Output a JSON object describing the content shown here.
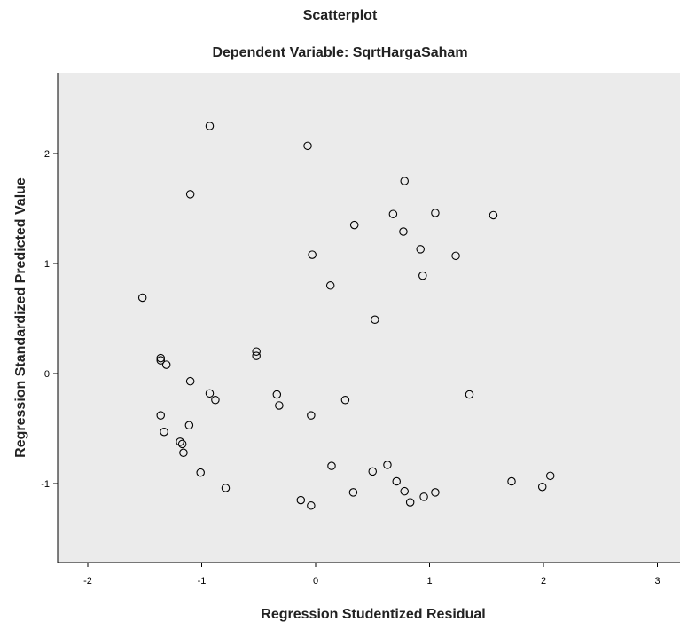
{
  "chart_data": {
    "type": "scatter",
    "title": "Scatterplot",
    "subtitle": "Dependent Variable: SqrtHargaSaham",
    "xlabel": "Regression Studentized Residual",
    "ylabel": "Regression Standardized Predicted Value",
    "xlim": [
      -2.25,
      3.2
    ],
    "ylim": [
      -1.7,
      2.7
    ],
    "xticks": [
      -2,
      -1,
      0,
      1,
      2,
      3
    ],
    "yticks": [
      -1,
      0,
      1,
      2
    ],
    "grid": false,
    "colors": {
      "plot_bg": "#ebebeb",
      "marker": "#000000"
    },
    "points": [
      {
        "x": -0.93,
        "y": 2.25
      },
      {
        "x": -0.07,
        "y": 2.07
      },
      {
        "x": -1.1,
        "y": 1.63
      },
      {
        "x": 0.78,
        "y": 1.75
      },
      {
        "x": 0.68,
        "y": 1.45
      },
      {
        "x": 1.05,
        "y": 1.46
      },
      {
        "x": 1.56,
        "y": 1.44
      },
      {
        "x": 0.34,
        "y": 1.35
      },
      {
        "x": 0.77,
        "y": 1.29
      },
      {
        "x": 0.92,
        "y": 1.13
      },
      {
        "x": -0.03,
        "y": 1.08
      },
      {
        "x": 1.23,
        "y": 1.07
      },
      {
        "x": 0.94,
        "y": 0.89
      },
      {
        "x": 0.13,
        "y": 0.8
      },
      {
        "x": -1.52,
        "y": 0.69
      },
      {
        "x": 0.52,
        "y": 0.49
      },
      {
        "x": -0.52,
        "y": 0.2
      },
      {
        "x": -0.52,
        "y": 0.16
      },
      {
        "x": -1.36,
        "y": 0.14
      },
      {
        "x": -1.36,
        "y": 0.12
      },
      {
        "x": -1.31,
        "y": 0.08
      },
      {
        "x": -1.1,
        "y": -0.07
      },
      {
        "x": -0.93,
        "y": -0.18
      },
      {
        "x": -0.88,
        "y": -0.24
      },
      {
        "x": -0.34,
        "y": -0.19
      },
      {
        "x": -0.32,
        "y": -0.29
      },
      {
        "x": 0.26,
        "y": -0.24
      },
      {
        "x": 1.35,
        "y": -0.19
      },
      {
        "x": -0.04,
        "y": -0.38
      },
      {
        "x": -1.36,
        "y": -0.38
      },
      {
        "x": -1.11,
        "y": -0.47
      },
      {
        "x": -1.33,
        "y": -0.53
      },
      {
        "x": -1.19,
        "y": -0.62
      },
      {
        "x": -1.17,
        "y": -0.64
      },
      {
        "x": -1.16,
        "y": -0.72
      },
      {
        "x": -1.01,
        "y": -0.9
      },
      {
        "x": 0.14,
        "y": -0.84
      },
      {
        "x": 0.5,
        "y": -0.89
      },
      {
        "x": 0.63,
        "y": -0.83
      },
      {
        "x": 0.71,
        "y": -0.98
      },
      {
        "x": 0.78,
        "y": -1.07
      },
      {
        "x": 0.33,
        "y": -1.08
      },
      {
        "x": 0.83,
        "y": -1.17
      },
      {
        "x": 0.95,
        "y": -1.12
      },
      {
        "x": 1.05,
        "y": -1.08
      },
      {
        "x": 1.72,
        "y": -0.98
      },
      {
        "x": 1.99,
        "y": -1.03
      },
      {
        "x": 2.06,
        "y": -0.93
      },
      {
        "x": -0.79,
        "y": -1.04
      },
      {
        "x": -0.13,
        "y": -1.15
      },
      {
        "x": -0.04,
        "y": -1.2
      }
    ]
  }
}
